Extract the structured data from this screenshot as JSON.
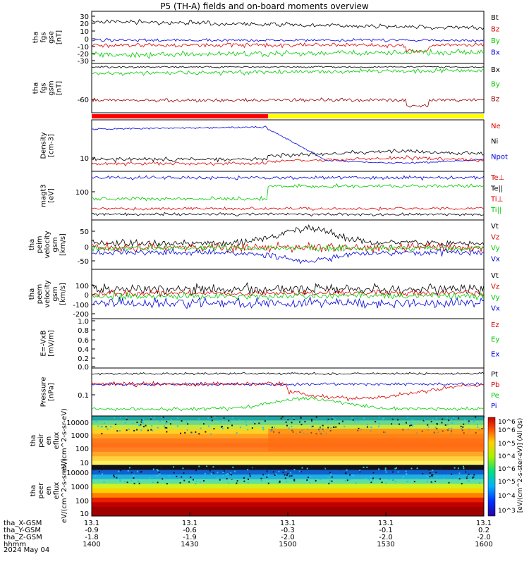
{
  "title": "P5 (TH-A) fields and on-board moments overview",
  "colorbar_unit_label": "[eV/(cm^2-s-ster-eV)] (All Qs)",
  "colorbar_ticks": [
    "10^6",
    "10^6",
    "10^5",
    "10^4",
    "10^6",
    "10^5",
    "10^4",
    "10^3"
  ],
  "time_axis": {
    "rows": [
      {
        "label": "tha_X-GSM",
        "values": [
          "13.1",
          "13.1",
          "13.1",
          "13.1",
          "13.1"
        ]
      },
      {
        "label": "tha_Y-GSM",
        "values": [
          "-0.9",
          "-0.6",
          "-0.3",
          "-0.1",
          "0.2"
        ]
      },
      {
        "label": "tha_Z-GSM",
        "values": [
          "-1.8",
          "-1.9",
          "-2.0",
          "-2.0",
          "-2.0"
        ]
      },
      {
        "label": "hhmm",
        "values": [
          "1400",
          "1430",
          "1500",
          "1530",
          "1600"
        ]
      }
    ],
    "date": "2024 May 04"
  },
  "chart_data": [
    {
      "type": "line",
      "ylabel": "tha fgs gse [nT]",
      "yticks": [
        "30",
        "20",
        "10",
        "0",
        "-10",
        "-20",
        "-30"
      ],
      "series": [
        {
          "name": "Bt",
          "color": "#000000",
          "mean": 25,
          "noise": 5
        },
        {
          "name": "Bz",
          "color": "#dd0000",
          "mean": -3,
          "noise": 4
        },
        {
          "name": "By",
          "color": "#00cc00",
          "mean": -12,
          "noise": 6
        },
        {
          "name": "Bx",
          "color": "#0000dd",
          "mean": 0,
          "noise": 3
        }
      ]
    },
    {
      "type": "line",
      "ylabel": "tha fgs gsm [nT]",
      "yticks": [
        "-60"
      ],
      "series": [
        {
          "name": "Bx",
          "color": "#000000",
          "mean": 0,
          "noise": 2
        },
        {
          "name": "By",
          "color": "#00cc00",
          "mean": -12,
          "noise": 5
        },
        {
          "name": "Bz",
          "color": "#990000",
          "mean": -62,
          "noise": 4
        }
      ]
    },
    {
      "type": "line",
      "ylabel": "Density [cm-3]",
      "yticks": [
        "10"
      ],
      "series": [
        {
          "name": "Ne",
          "color": "#dd0000"
        },
        {
          "name": "Ni",
          "color": "#000000"
        },
        {
          "name": "Npot",
          "color": "#0000dd"
        }
      ]
    },
    {
      "type": "line",
      "ylabel": "magt3 [eV]",
      "yticks": [
        "100"
      ],
      "series": [
        {
          "name": "Te⊥",
          "color": "#dd0000"
        },
        {
          "name": "Te||",
          "color": "#000000"
        },
        {
          "name": "Ti⊥",
          "color": "#dd0000"
        },
        {
          "name": "Ti||",
          "color": "#00cc00"
        }
      ]
    },
    {
      "type": "line",
      "ylabel": "tha peim velocity gsm [km/s]",
      "yticks": [
        "50",
        "0",
        "-50"
      ],
      "series": [
        {
          "name": "Vt",
          "color": "#000000"
        },
        {
          "name": "Vz",
          "color": "#dd0000"
        },
        {
          "name": "Vy",
          "color": "#00cc00"
        },
        {
          "name": "Vx",
          "color": "#0000dd"
        }
      ]
    },
    {
      "type": "line",
      "ylabel": "tha peem velocity gsm [km/s]",
      "yticks": [
        "100",
        "0",
        "-100",
        "-200"
      ],
      "series": [
        {
          "name": "Vt",
          "color": "#000000"
        },
        {
          "name": "Vz",
          "color": "#dd0000"
        },
        {
          "name": "Vy",
          "color": "#00cc00"
        },
        {
          "name": "Vx",
          "color": "#0000dd"
        }
      ]
    },
    {
      "type": "line",
      "ylabel": "E=-VxB [mV/m]",
      "yticks": [
        "1.0",
        "0.8",
        "0.6",
        "0.4",
        "0.2",
        "0.0"
      ],
      "series": [
        {
          "name": "Ez",
          "color": "#dd0000"
        },
        {
          "name": "Ey",
          "color": "#00cc00"
        },
        {
          "name": "Ex",
          "color": "#0000dd"
        }
      ]
    },
    {
      "type": "line",
      "ylabel": "Pressure [nPa]",
      "yticks": [
        "0.1"
      ],
      "series": [
        {
          "name": "Pt",
          "color": "#000000"
        },
        {
          "name": "Pb",
          "color": "#dd0000"
        },
        {
          "name": "Pe",
          "color": "#00cc00"
        },
        {
          "name": "Pi",
          "color": "#0000dd"
        }
      ]
    },
    {
      "type": "heatmap",
      "ylabel": "tha peir en eflux eV/(cm^2-s-sr-eV)",
      "yticks": [
        "10000",
        "1000",
        "100",
        "10"
      ]
    },
    {
      "type": "heatmap",
      "ylabel": "tha peer en eflux eV/(cm^2-s-sr-eV)",
      "yticks": [
        "10000",
        "1000",
        "100",
        "10"
      ]
    }
  ]
}
